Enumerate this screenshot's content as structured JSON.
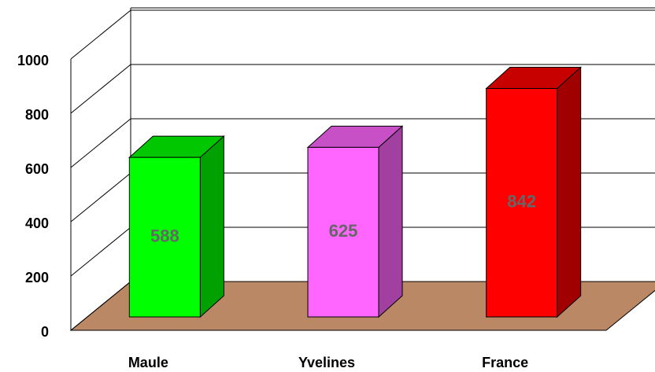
{
  "chart_data": {
    "type": "bar3d",
    "categories": [
      "Maule",
      "Yvelines",
      "France"
    ],
    "values": [
      588,
      625,
      842
    ],
    "colors": [
      "#00ff00",
      "#ff66ff",
      "#ff0000"
    ],
    "ylim": [
      0,
      1000
    ],
    "yticks": [
      0,
      200,
      400,
      600,
      800,
      1000
    ],
    "grid": true
  }
}
